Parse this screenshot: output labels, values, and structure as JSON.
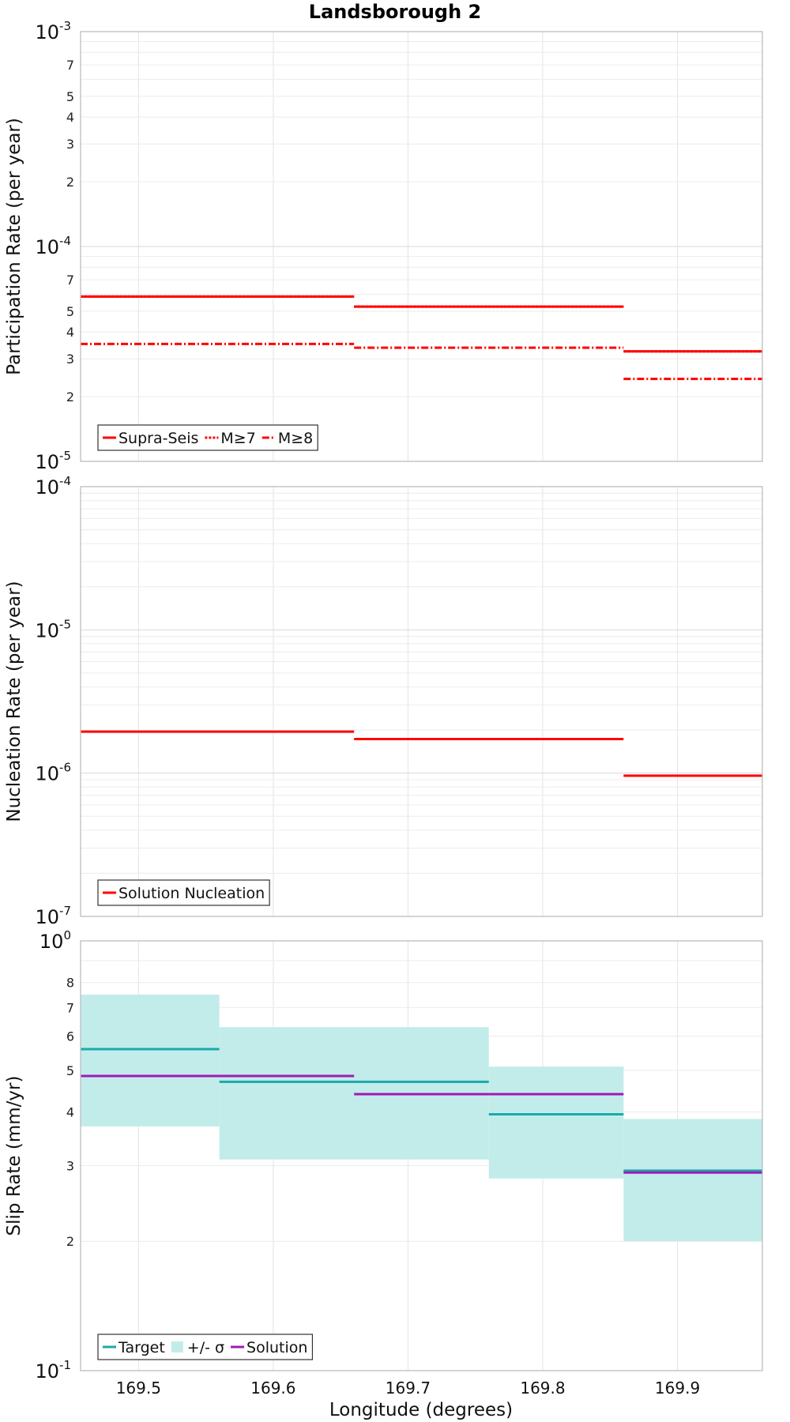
{
  "title": "Landsborough 2",
  "xlabel": "Longitude (degrees)",
  "chart_data": [
    {
      "type": "line",
      "step": true,
      "ylabel": "Participation Rate (per year)",
      "yscale": "log",
      "ylim": [
        1e-05,
        0.001
      ],
      "xlim": [
        169.457,
        169.963
      ],
      "x_ticks": [
        "169.5",
        "169.6",
        "169.7",
        "169.8",
        "169.9"
      ],
      "y_major_ticks": [
        {
          "value": 1e-05,
          "base": "10",
          "exp": "-5"
        },
        {
          "value": 0.0001,
          "base": "10",
          "exp": "-4"
        },
        {
          "value": 0.001,
          "base": "10",
          "exp": "-3"
        }
      ],
      "y_minor_labels": [
        "2",
        "3",
        "4",
        "5",
        "7"
      ],
      "grid": true,
      "legend_position": "bottom-left",
      "series": [
        {
          "name": "Supra-Seis",
          "color": "#ff0000",
          "style": "solid",
          "segments": [
            {
              "x0": 169.457,
              "x1": 169.66,
              "y": 5.85e-05
            },
            {
              "x0": 169.66,
              "x1": 169.86,
              "y": 5.25e-05
            },
            {
              "x0": 169.86,
              "x1": 169.963,
              "y": 3.25e-05
            }
          ]
        },
        {
          "name": "M≥7",
          "color": "#ff0000",
          "style": "dotted",
          "segments": [
            {
              "x0": 169.457,
              "x1": 169.66,
              "y": 5.85e-05
            },
            {
              "x0": 169.66,
              "x1": 169.86,
              "y": 5.25e-05
            },
            {
              "x0": 169.86,
              "x1": 169.963,
              "y": 3.25e-05
            }
          ]
        },
        {
          "name": "M≥8",
          "color": "#ff0000",
          "style": "dashdot",
          "segments": [
            {
              "x0": 169.457,
              "x1": 169.66,
              "y": 3.52e-05
            },
            {
              "x0": 169.66,
              "x1": 169.86,
              "y": 3.38e-05
            },
            {
              "x0": 169.86,
              "x1": 169.963,
              "y": 2.42e-05
            }
          ]
        }
      ]
    },
    {
      "type": "line",
      "step": true,
      "ylabel": "Nucleation Rate (per year)",
      "yscale": "log",
      "ylim": [
        1e-07,
        0.0001
      ],
      "xlim": [
        169.457,
        169.963
      ],
      "x_ticks": [
        "169.5",
        "169.6",
        "169.7",
        "169.8",
        "169.9"
      ],
      "y_major_ticks": [
        {
          "value": 1e-07,
          "base": "10",
          "exp": "-7"
        },
        {
          "value": 1e-06,
          "base": "10",
          "exp": "-6"
        },
        {
          "value": 1e-05,
          "base": "10",
          "exp": "-5"
        },
        {
          "value": 0.0001,
          "base": "10",
          "exp": "-4"
        }
      ],
      "y_minor_labels": [],
      "grid": true,
      "legend_position": "bottom-left",
      "series": [
        {
          "name": "Solution Nucleation",
          "color": "#ff0000",
          "style": "solid",
          "segments": [
            {
              "x0": 169.457,
              "x1": 169.66,
              "y": 1.95e-06
            },
            {
              "x0": 169.66,
              "x1": 169.86,
              "y": 1.73e-06
            },
            {
              "x0": 169.86,
              "x1": 169.963,
              "y": 9.6e-07
            }
          ]
        }
      ]
    },
    {
      "type": "line",
      "step": true,
      "ylabel": "Slip Rate (mm/yr)",
      "yscale": "log",
      "ylim": [
        0.1,
        1
      ],
      "xlim": [
        169.457,
        169.963
      ],
      "x_ticks": [
        "169.5",
        "169.6",
        "169.7",
        "169.8",
        "169.9"
      ],
      "y_major_ticks": [
        {
          "value": 0.1,
          "base": "10",
          "exp": "-1"
        },
        {
          "value": 1,
          "base": "10",
          "exp": "0"
        }
      ],
      "y_minor_labels": [
        "2",
        "3",
        "4",
        "5",
        "6",
        "7",
        "8"
      ],
      "grid": true,
      "legend_position": "bottom-left",
      "bands": {
        "name": "+/- σ",
        "color": "#c2ecea",
        "segments": [
          {
            "x0": 169.457,
            "x1": 169.56,
            "low": 0.37,
            "high": 0.75
          },
          {
            "x0": 169.56,
            "x1": 169.76,
            "low": 0.31,
            "high": 0.63
          },
          {
            "x0": 169.76,
            "x1": 169.86,
            "low": 0.28,
            "high": 0.51
          },
          {
            "x0": 169.86,
            "x1": 169.963,
            "low": 0.2,
            "high": 0.385
          }
        ]
      },
      "series": [
        {
          "name": "Target",
          "color": "#1aaaaa",
          "style": "solid",
          "segments": [
            {
              "x0": 169.457,
              "x1": 169.56,
              "y": 0.56
            },
            {
              "x0": 169.56,
              "x1": 169.76,
              "y": 0.47
            },
            {
              "x0": 169.76,
              "x1": 169.86,
              "y": 0.395
            },
            {
              "x0": 169.86,
              "x1": 169.963,
              "y": 0.292
            }
          ]
        },
        {
          "name": "Solution",
          "color": "#a318b8",
          "style": "solid",
          "segments": [
            {
              "x0": 169.457,
              "x1": 169.66,
              "y": 0.485
            },
            {
              "x0": 169.66,
              "x1": 169.86,
              "y": 0.44
            },
            {
              "x0": 169.86,
              "x1": 169.963,
              "y": 0.289
            }
          ]
        }
      ]
    }
  ]
}
